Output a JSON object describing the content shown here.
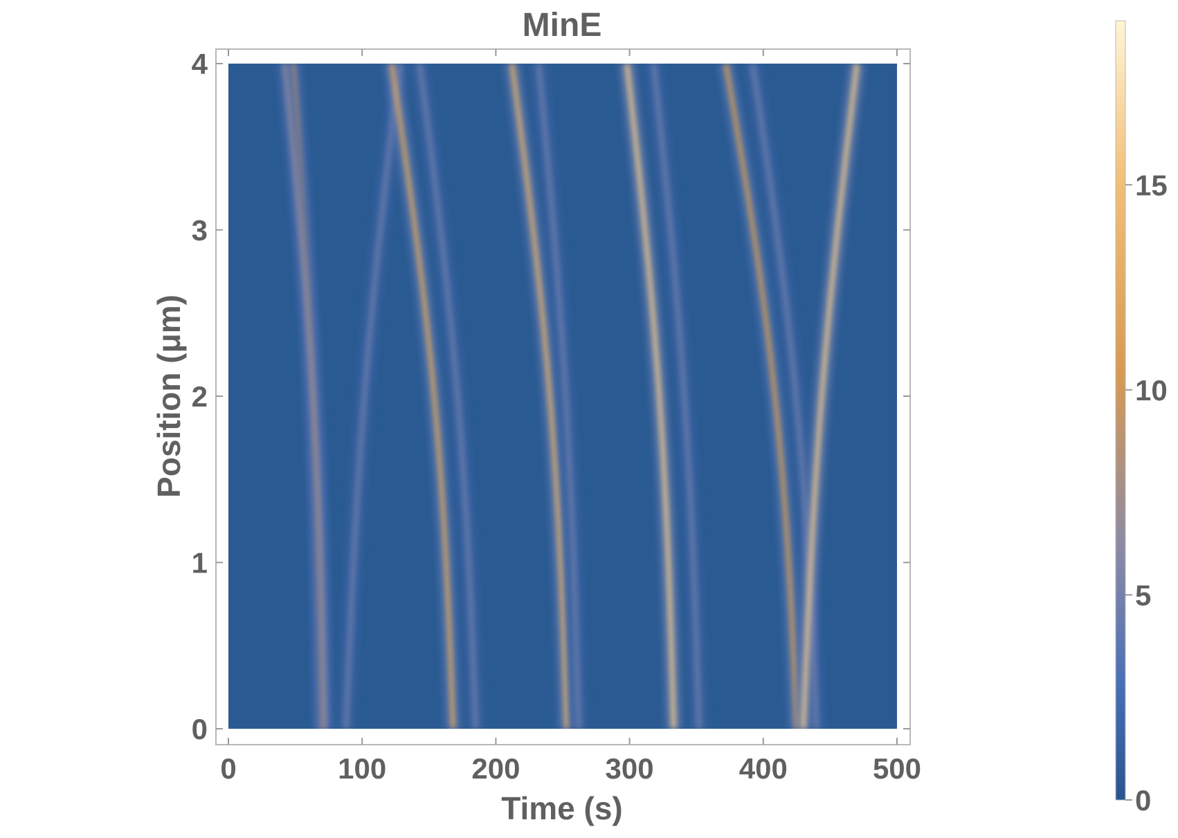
{
  "chart_data": {
    "type": "heatmap",
    "title": "MinE",
    "xlabel": "Time (s)",
    "ylabel": "Position (μm)",
    "xlim": [
      0,
      500
    ],
    "ylim": [
      0,
      4
    ],
    "x_ticks": [
      0,
      100,
      200,
      300,
      400,
      500
    ],
    "y_ticks": [
      0,
      1,
      2,
      3,
      4
    ],
    "colorbar": {
      "range": [
        0,
        19
      ],
      "ticks": [
        0,
        5,
        10,
        15
      ],
      "colors": [
        "#2a5490",
        "#4a6fb6",
        "#8a8aa6",
        "#d89a52",
        "#f2c07a",
        "#fff5d6"
      ]
    },
    "background_color": "#2a5a92",
    "bands": [
      {
        "t_bottom": 70,
        "t_top": 48,
        "curve": 0.55,
        "peak": 11
      },
      {
        "t_bottom": 72,
        "t_top": 42,
        "curve": 0.6,
        "peak": 8
      },
      {
        "t_bottom": 88,
        "t_top": 128,
        "curve": 0.45,
        "peak": 6
      },
      {
        "t_bottom": 168,
        "t_top": 122,
        "curve": 0.55,
        "peak": 13
      },
      {
        "t_bottom": 185,
        "t_top": 143,
        "curve": 0.5,
        "peak": 6
      },
      {
        "t_bottom": 253,
        "t_top": 212,
        "curve": 0.55,
        "peak": 14
      },
      {
        "t_bottom": 262,
        "t_top": 232,
        "curve": 0.5,
        "peak": 6
      },
      {
        "t_bottom": 333,
        "t_top": 298,
        "curve": 0.55,
        "peak": 16
      },
      {
        "t_bottom": 352,
        "t_top": 318,
        "curve": 0.5,
        "peak": 6
      },
      {
        "t_bottom": 425,
        "t_top": 372,
        "curve": 0.55,
        "peak": 12
      },
      {
        "t_bottom": 440,
        "t_top": 392,
        "curve": 0.5,
        "peak": 6
      },
      {
        "t_bottom": 430,
        "t_top": 470,
        "curve": 0.45,
        "peak": 16
      },
      {
        "t_bottom": 470,
        "t_top": 470,
        "curve": 0.0,
        "peak": 16
      }
    ]
  }
}
